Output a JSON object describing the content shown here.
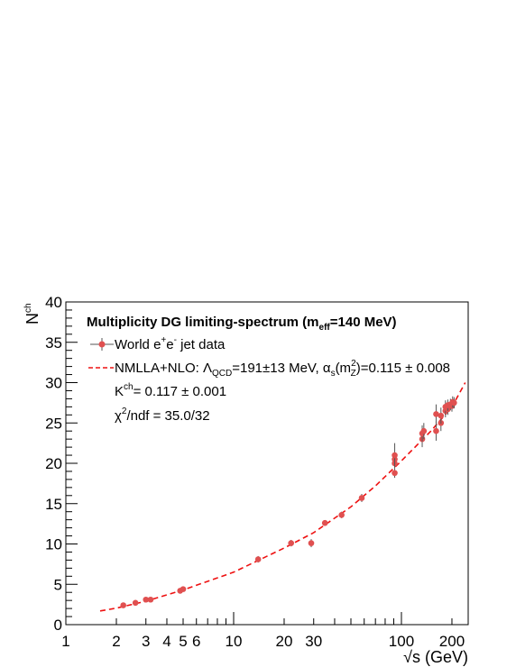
{
  "chart_data": {
    "type": "scatter",
    "xscale": "log",
    "xlim": [
      1,
      250
    ],
    "ylim": [
      0,
      40
    ],
    "xlabel": "√s (GeV)",
    "ylabel": "N",
    "ylabel_sup": "ch",
    "x_ticks": [
      1,
      2,
      3,
      4,
      5,
      6,
      10,
      20,
      30,
      100,
      200
    ],
    "y_ticks": [
      0,
      5,
      10,
      15,
      20,
      25,
      30,
      35,
      40
    ],
    "grid": false,
    "legend": {
      "placement": "top-left",
      "title": {
        "main": "Multiplicity DG limiting-spectrum (m",
        "sub": "eff",
        "tail": "=140 MeV)"
      },
      "data_entry": {
        "t1": "World e",
        "sup1": "+",
        "t2": "e",
        "sup2": "-",
        "t3": " jet data"
      },
      "fit_entry": {
        "t1": "NMLLA+NLO: Λ",
        "sub1": "QCD",
        "t2": "=191±13 MeV, α",
        "sub2": "s",
        "t3": "(m",
        "sup3": "2",
        "sub3": "Z",
        "t4": ")=0.115 ± 0.008"
      },
      "k_line": {
        "t1": "K",
        "sup1": "ch",
        "t2": "=  0.117 ± 0.001"
      },
      "chi2_line": {
        "t1": "χ",
        "sup1": "2",
        "t2": "/ndf = 35.0/32"
      }
    },
    "series": [
      {
        "name": "World e+e- jet data",
        "color": "#e05050",
        "points": [
          {
            "x": 2.2,
            "y": 2.4,
            "err": 0.2
          },
          {
            "x": 2.6,
            "y": 2.7,
            "err": 0.2
          },
          {
            "x": 3.0,
            "y": 3.1,
            "err": 0.2
          },
          {
            "x": 3.2,
            "y": 3.1,
            "err": 0.2
          },
          {
            "x": 4.8,
            "y": 4.2,
            "err": 0.2
          },
          {
            "x": 5.0,
            "y": 4.4,
            "err": 0.2
          },
          {
            "x": 14.0,
            "y": 8.1,
            "err": 0.4
          },
          {
            "x": 22.0,
            "y": 10.1,
            "err": 0.4
          },
          {
            "x": 29.0,
            "y": 10.1,
            "err": 0.5
          },
          {
            "x": 35.0,
            "y": 12.6,
            "err": 0.3
          },
          {
            "x": 44.0,
            "y": 13.6,
            "err": 0.4
          },
          {
            "x": 58.0,
            "y": 15.7,
            "err": 0.5
          },
          {
            "x": 91.2,
            "y": 18.8,
            "err": 0.6
          },
          {
            "x": 91.2,
            "y": 20.0,
            "err": 0.6
          },
          {
            "x": 91.2,
            "y": 20.5,
            "err": 0.6
          },
          {
            "x": 91.2,
            "y": 21.0,
            "err": 1.5
          },
          {
            "x": 133.0,
            "y": 23.0,
            "err": 1.0
          },
          {
            "x": 133.0,
            "y": 23.7,
            "err": 1.0
          },
          {
            "x": 136.0,
            "y": 24.0,
            "err": 1.0
          },
          {
            "x": 161.0,
            "y": 24.0,
            "err": 1.2
          },
          {
            "x": 161.0,
            "y": 26.1,
            "err": 1.2
          },
          {
            "x": 172.0,
            "y": 25.0,
            "err": 1.0
          },
          {
            "x": 172.0,
            "y": 25.9,
            "err": 1.0
          },
          {
            "x": 183.0,
            "y": 26.5,
            "err": 0.8
          },
          {
            "x": 183.0,
            "y": 27.0,
            "err": 0.8
          },
          {
            "x": 189.0,
            "y": 26.7,
            "err": 0.7
          },
          {
            "x": 189.0,
            "y": 27.2,
            "err": 0.7
          },
          {
            "x": 196.0,
            "y": 27.3,
            "err": 0.7
          },
          {
            "x": 200.0,
            "y": 27.1,
            "err": 0.7
          },
          {
            "x": 202.0,
            "y": 27.6,
            "err": 0.7
          },
          {
            "x": 206.0,
            "y": 27.5,
            "err": 0.7
          }
        ]
      },
      {
        "name": "NMLLA+NLO fit",
        "color": "#ee1111",
        "style": "dashed",
        "curve": [
          {
            "x": 1.6,
            "y": 1.7
          },
          {
            "x": 2,
            "y": 2.05
          },
          {
            "x": 3,
            "y": 2.9
          },
          {
            "x": 5,
            "y": 4.3
          },
          {
            "x": 10,
            "y": 6.5
          },
          {
            "x": 20,
            "y": 9.5
          },
          {
            "x": 30,
            "y": 11.4
          },
          {
            "x": 50,
            "y": 14.6
          },
          {
            "x": 70,
            "y": 17.2
          },
          {
            "x": 100,
            "y": 20.3
          },
          {
            "x": 150,
            "y": 24.0
          },
          {
            "x": 200,
            "y": 27.0
          },
          {
            "x": 240,
            "y": 30.0
          }
        ]
      }
    ]
  }
}
